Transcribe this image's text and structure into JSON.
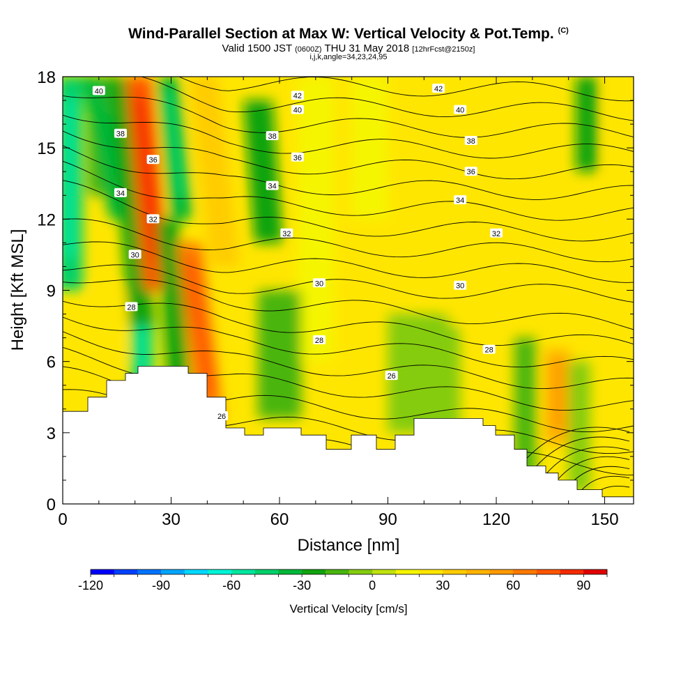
{
  "chart_data": {
    "type": "heatmap",
    "title": "Wind-Parallel Section at Max W: Vertical Velocity & Pot.Temp.",
    "title_mark": "(C)",
    "subtitle_main": "Valid 1500 JST",
    "subtitle_z": "(0600Z)",
    "subtitle_date": "THU 31 May 2018",
    "subtitle_fcst": "[12hrFcst@2150z]",
    "subtitle2": "i,j,k,angle=34,23,24,95",
    "xlabel": "Distance [nm]",
    "ylabel": "Height [Kft MSL]",
    "xlim": [
      0,
      158
    ],
    "ylim": [
      0,
      18
    ],
    "x_ticks": [
      "0",
      "30",
      "60",
      "90",
      "120",
      "150"
    ],
    "y_ticks": [
      "0",
      "3",
      "6",
      "9",
      "12",
      "15",
      "18"
    ],
    "colorbar": {
      "label": "Vertical Velocity [cm/s]",
      "range": [
        -120,
        100
      ],
      "step": 10,
      "tick_labels": [
        "-120",
        "-90",
        "-60",
        "-30",
        "0",
        "30",
        "60",
        "90"
      ],
      "colors": [
        "#0000ff",
        "#0040ff",
        "#0073ff",
        "#00a6ff",
        "#00d9ff",
        "#00f5d6",
        "#00e69e",
        "#00d06a",
        "#00b838",
        "#11a30f",
        "#48b50e",
        "#84cc0f",
        "#c0e20f",
        "#f5f500",
        "#ffe600",
        "#ffcc00",
        "#ffb300",
        "#ff9900",
        "#ff7a00",
        "#ff5500",
        "#f52a00",
        "#e00000",
        "#c0002a",
        "#8c0050",
        "#5a0080"
      ]
    },
    "terrain_height_kft": [
      3.9,
      3.9,
      3.9,
      3.9,
      4.5,
      4.5,
      4.5,
      5.2,
      5.2,
      5.2,
      5.5,
      5.5,
      5.8,
      5.8,
      5.8,
      5.8,
      5.8,
      5.8,
      5.8,
      5.8,
      5.5,
      5.5,
      5.5,
      4.5,
      4.5,
      4.5,
      3.2,
      3.2,
      3.2,
      2.9,
      2.9,
      2.9,
      3.2,
      3.2,
      3.2,
      3.2,
      3.2,
      3.2,
      2.9,
      2.9,
      2.9,
      2.9,
      2.3,
      2.3,
      2.3,
      2.3,
      2.9,
      2.9,
      2.9,
      2.9,
      2.3,
      2.3,
      2.3,
      2.9,
      2.9,
      2.9,
      3.6,
      3.6,
      3.6,
      3.6,
      3.6,
      3.6,
      3.6,
      3.6,
      3.6,
      3.6,
      3.6,
      3.3,
      3.3,
      2.9,
      2.9,
      2.9,
      2.3,
      2.3,
      1.6,
      1.6,
      1.6,
      1.3,
      1.3,
      1.0,
      1.0,
      1.0,
      0.6,
      0.6,
      0.6,
      0.6,
      0.3,
      0.3,
      0.3,
      0.3,
      0.3
    ],
    "w_features": [
      {
        "x": 2,
        "y0": 9,
        "y1": 18,
        "width": 3.5,
        "value": -45
      },
      {
        "x": 10,
        "y0": 13,
        "y1": 18,
        "width": 3.0,
        "value": -20
      },
      {
        "x": 16,
        "y0": 12,
        "y1": 18,
        "width": 3.0,
        "value": -35,
        "tilt": -8
      },
      {
        "x": 22,
        "y0": 5.0,
        "y1": 7.8,
        "width": 3.0,
        "value": -45
      },
      {
        "x": 22,
        "y0": 7.5,
        "y1": 18,
        "width": 3.5,
        "value": -25,
        "tilt": -6
      },
      {
        "x": 26,
        "y0": 9,
        "y1": 18,
        "width": 3.5,
        "value": 70,
        "tilt": -5
      },
      {
        "x": 33,
        "y0": 12,
        "y1": 18,
        "width": 3.0,
        "value": -40,
        "tilt": -4
      },
      {
        "x": 33,
        "y0": 3.0,
        "y1": 12,
        "width": 3.0,
        "value": -25,
        "tilt": -4
      },
      {
        "x": 41,
        "y0": 3.5,
        "y1": 11,
        "width": 3.5,
        "value": 60,
        "tilt": -6
      },
      {
        "x": 45,
        "y0": 10,
        "y1": 18,
        "width": 4.0,
        "value": 30,
        "tilt": -6
      },
      {
        "x": 7,
        "y0": 4,
        "y1": 7,
        "width": 4,
        "value": 25
      },
      {
        "x": 13,
        "y0": 6,
        "y1": 9,
        "width": 4,
        "value": 25
      },
      {
        "x": 57,
        "y0": 11,
        "y1": 17,
        "width": 4,
        "value": -30,
        "tilt": -3
      },
      {
        "x": 70,
        "y0": 6,
        "y1": 18,
        "width": 5,
        "value": 15
      },
      {
        "x": 60,
        "y0": 3.6,
        "y1": 9,
        "width": 6,
        "value": -12
      },
      {
        "x": 100,
        "y0": 3,
        "y1": 8,
        "width": 10,
        "value": -10
      },
      {
        "x": 111,
        "y0": 7.5,
        "y1": 12,
        "width": 4,
        "value": 22
      },
      {
        "x": 85,
        "y0": 12,
        "y1": 18,
        "width": 5,
        "value": 12
      },
      {
        "x": 137,
        "y0": 2.5,
        "y1": 6.5,
        "width": 3.5,
        "value": 40
      },
      {
        "x": 128,
        "y0": 1,
        "y1": 7,
        "width": 3,
        "value": -15
      },
      {
        "x": 143,
        "y0": 0.5,
        "y1": 6,
        "width": 3,
        "value": -10
      },
      {
        "x": 145,
        "y0": 14,
        "y1": 18,
        "width": 3,
        "value": -30
      },
      {
        "x": 155,
        "y0": 12,
        "y1": 18,
        "width": 4,
        "value": 20
      }
    ],
    "theta_labels": [
      {
        "text": "40",
        "x": 10,
        "y": 17.4
      },
      {
        "text": "38",
        "x": 16,
        "y": 15.6
      },
      {
        "text": "36",
        "x": 25,
        "y": 14.5
      },
      {
        "text": "34",
        "x": 16,
        "y": 13.1
      },
      {
        "text": "32",
        "x": 25,
        "y": 12.0
      },
      {
        "text": "30",
        "x": 20,
        "y": 10.5
      },
      {
        "text": "28",
        "x": 19,
        "y": 8.3
      },
      {
        "text": "26",
        "x": 44,
        "y": 3.7
      },
      {
        "text": "42",
        "x": 65,
        "y": 17.2
      },
      {
        "text": "40",
        "x": 65,
        "y": 16.6
      },
      {
        "text": "38",
        "x": 58,
        "y": 15.5
      },
      {
        "text": "36",
        "x": 65,
        "y": 14.6
      },
      {
        "text": "34",
        "x": 58,
        "y": 13.4
      },
      {
        "text": "32",
        "x": 62,
        "y": 11.4
      },
      {
        "text": "30",
        "x": 71,
        "y": 9.3
      },
      {
        "text": "28",
        "x": 71,
        "y": 6.9
      },
      {
        "text": "26",
        "x": 91,
        "y": 5.4
      },
      {
        "text": "42",
        "x": 104,
        "y": 17.5
      },
      {
        "text": "40",
        "x": 110,
        "y": 16.6
      },
      {
        "text": "38",
        "x": 113,
        "y": 15.3
      },
      {
        "text": "36",
        "x": 113,
        "y": 14.0
      },
      {
        "text": "34",
        "x": 110,
        "y": 12.8
      },
      {
        "text": "32",
        "x": 120,
        "y": 11.4
      },
      {
        "text": "30",
        "x": 110,
        "y": 9.2
      },
      {
        "text": "28",
        "x": 118,
        "y": 6.5
      }
    ]
  }
}
